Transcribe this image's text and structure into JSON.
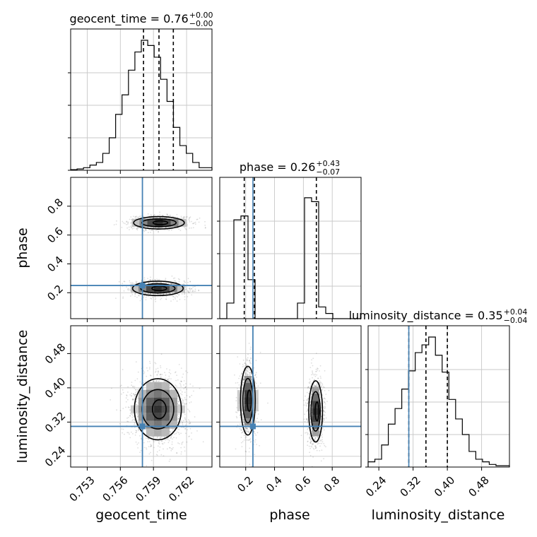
{
  "chart_data": {
    "type": "corner",
    "truth_color": "#4682b4",
    "parameters": [
      "geocent_time",
      "phase",
      "luminosity_distance"
    ],
    "titles": {
      "geocent_time": {
        "label": "geocent_time = 0.76",
        "plus": "+0.00",
        "minus": "−0.00"
      },
      "phase": {
        "label": "phase = 0.26",
        "plus": "+0.43",
        "minus": "−0.07"
      },
      "luminosity_distance": {
        "label": "luminosity_distance = 0.35",
        "plus": "+0.04",
        "minus": "−0.04"
      }
    },
    "axis_labels": {
      "x": [
        "geocent_time",
        "phase",
        "luminosity_distance"
      ],
      "y": [
        "phase",
        "luminosity_distance"
      ]
    },
    "ranges": {
      "geocent_time": [
        0.7515,
        0.7643
      ],
      "phase": [
        0.02,
        1.0
      ],
      "luminosity_distance": [
        0.215,
        0.545
      ]
    },
    "ticks": {
      "geocent_time": [
        "0.753",
        "0.756",
        "0.759",
        "0.762"
      ],
      "phase": [
        "0.2",
        "0.4",
        "0.6",
        "0.8"
      ],
      "luminosity_distance": [
        "0.24",
        "0.32",
        "0.40",
        "0.48"
      ]
    },
    "truths": {
      "geocent_time": 0.758,
      "phase": 0.25,
      "luminosity_distance": 0.31
    },
    "quantiles": {
      "geocent_time": [
        0.7581,
        0.7595,
        0.7608
      ],
      "phase": [
        0.19,
        0.26,
        0.69
      ],
      "luminosity_distance": [
        0.31,
        0.35,
        0.4
      ]
    },
    "histograms": {
      "geocent_time": [
        0.005,
        0.01,
        0.02,
        0.04,
        0.06,
        0.13,
        0.25,
        0.43,
        0.58,
        0.77,
        0.91,
        1.0,
        0.96,
        0.87,
        0.7,
        0.53,
        0.33,
        0.19,
        0.13,
        0.06,
        0.02,
        0.02
      ],
      "phase": [
        0,
        0.12,
        0.76,
        0.79,
        0.3,
        0,
        0,
        0,
        0,
        0,
        0,
        0.12,
        0.93,
        0.9,
        0.09,
        0.04,
        0,
        0,
        0,
        0
      ],
      "luminosity_distance": [
        0.04,
        0.06,
        0.17,
        0.33,
        0.45,
        0.6,
        0.74,
        0.88,
        0.94,
        1.0,
        0.86,
        0.73,
        0.52,
        0.37,
        0.25,
        0.12,
        0.06,
        0.04,
        0.02,
        0.01,
        0.01
      ]
    },
    "grid": true
  }
}
